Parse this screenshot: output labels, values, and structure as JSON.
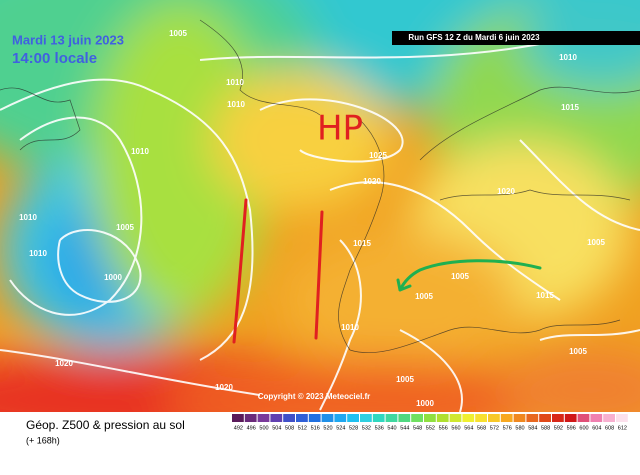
{
  "header": {
    "date": "Mardi 13 juin 2023",
    "time": "14:00 locale",
    "run": "Run GFS 12 Z du Mardi 6 juin 2023"
  },
  "annotation": "HP",
  "isobars": [
    "1005",
    "1010",
    "1010",
    "1010",
    "1025",
    "1020",
    "1005",
    "1010",
    "1010",
    "1000",
    "1015",
    "1005",
    "1005",
    "1015",
    "1020",
    "1015",
    "1010",
    "1005",
    "1010",
    "1020",
    "1020",
    "1005",
    "1000",
    "1005"
  ],
  "copyright": "Copyright © 2023 Meteociel.fr",
  "footer": {
    "title": "Géop. Z500 & pression au sol",
    "lead": "(+ 168h)"
  },
  "scale": [
    492,
    496,
    500,
    504,
    508,
    512,
    516,
    520,
    524,
    528,
    532,
    536,
    540,
    544,
    548,
    552,
    556,
    560,
    564,
    568,
    572,
    576,
    580,
    584,
    588,
    592,
    596,
    600,
    604,
    608,
    612
  ]
}
